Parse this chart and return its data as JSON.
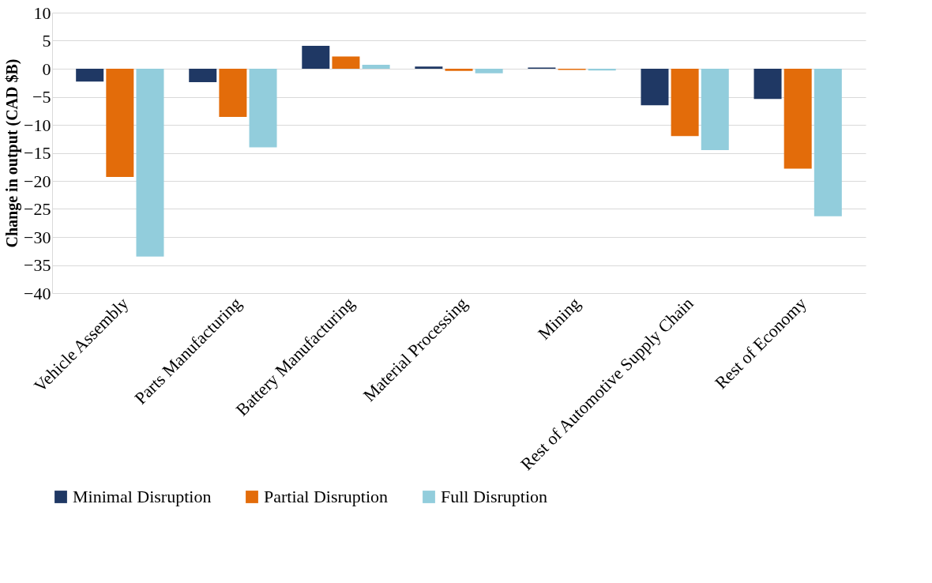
{
  "chart_data": {
    "type": "bar",
    "ylabel": "Change in output (CAD $B)",
    "categories": [
      "Vehicle Assembly",
      "Parts Manufacturing",
      "Battery Manufacturing",
      "Material Processing",
      "Mining",
      "Rest of Automotive Supply Chain",
      "Rest of Economy"
    ],
    "series": [
      {
        "name": "Minimal Disruption",
        "color": "#1f3864",
        "values": [
          -2.3,
          -2.4,
          4.1,
          0.4,
          0.2,
          -6.5,
          -5.4
        ]
      },
      {
        "name": "Partial Disruption",
        "color": "#e36c0a",
        "values": [
          -19.3,
          -8.6,
          2.2,
          -0.4,
          -0.2,
          -12.0,
          -17.8
        ]
      },
      {
        "name": "Full Disruption",
        "color": "#92cddc",
        "values": [
          -33.5,
          -14.0,
          0.7,
          -0.8,
          -0.3,
          -14.5,
          -26.3
        ]
      }
    ],
    "ylim": [
      -40,
      10
    ],
    "yticks": [
      -40,
      -35,
      -30,
      -25,
      -20,
      -15,
      -10,
      -5,
      0,
      5,
      10
    ],
    "grid": "y",
    "legend": "bottom"
  }
}
